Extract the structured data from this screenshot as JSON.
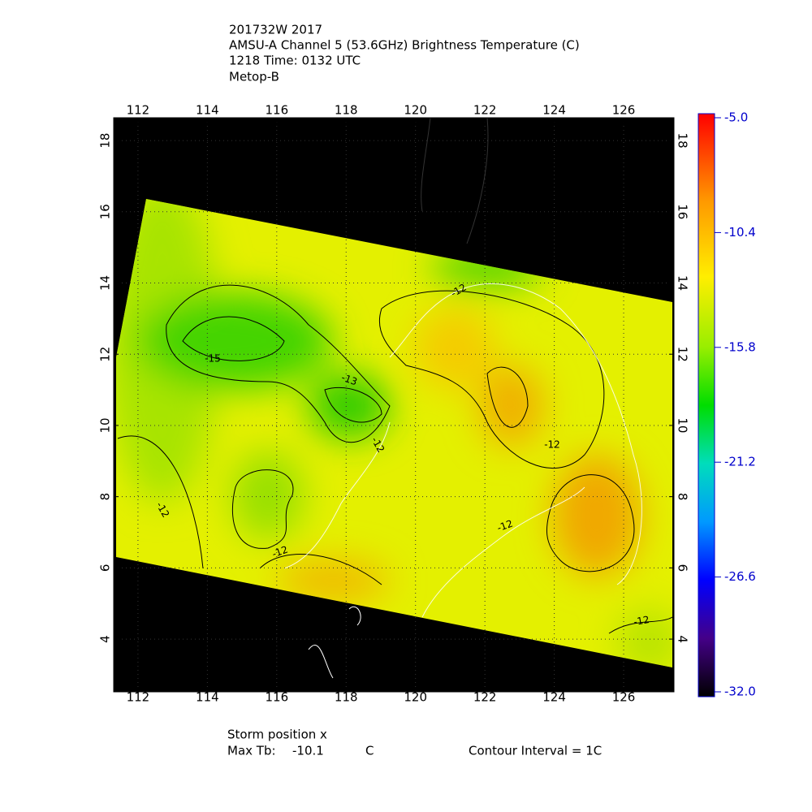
{
  "header": {
    "lines": [
      "201732W 2017",
      "AMSU-A Channel 5 (53.6GHz) Brightness Temperature (C)",
      "1218 Time: 0132 UTC",
      "Metop-B"
    ]
  },
  "map": {
    "lon_lim": [
      111.3,
      127.45
    ],
    "lon_ticks": [
      112,
      114,
      116,
      118,
      120,
      122,
      124,
      126
    ],
    "lat_lim": [
      2.52,
      18.64
    ],
    "lat_ticks": [
      4,
      6,
      8,
      10,
      12,
      14,
      16,
      18
    ],
    "contour_labels": [
      -12,
      -15,
      -13,
      -12,
      -12,
      -12,
      -12,
      -12,
      -12
    ]
  },
  "colorbar": {
    "lim": [
      -32,
      -5
    ],
    "ticks": [
      {
        "value": -5,
        "label": "-5.0"
      },
      -10.4,
      -15.8,
      -21.2,
      -26.6,
      {
        "value": -32,
        "label": "-32.0"
      }
    ]
  },
  "footer": {
    "storm": "Storm position x",
    "max_tb_label": "Max Tb:",
    "max_tb": -10.1,
    "max_tb_unit": "C",
    "contour_interval": "Contour Interval = 1C"
  }
}
